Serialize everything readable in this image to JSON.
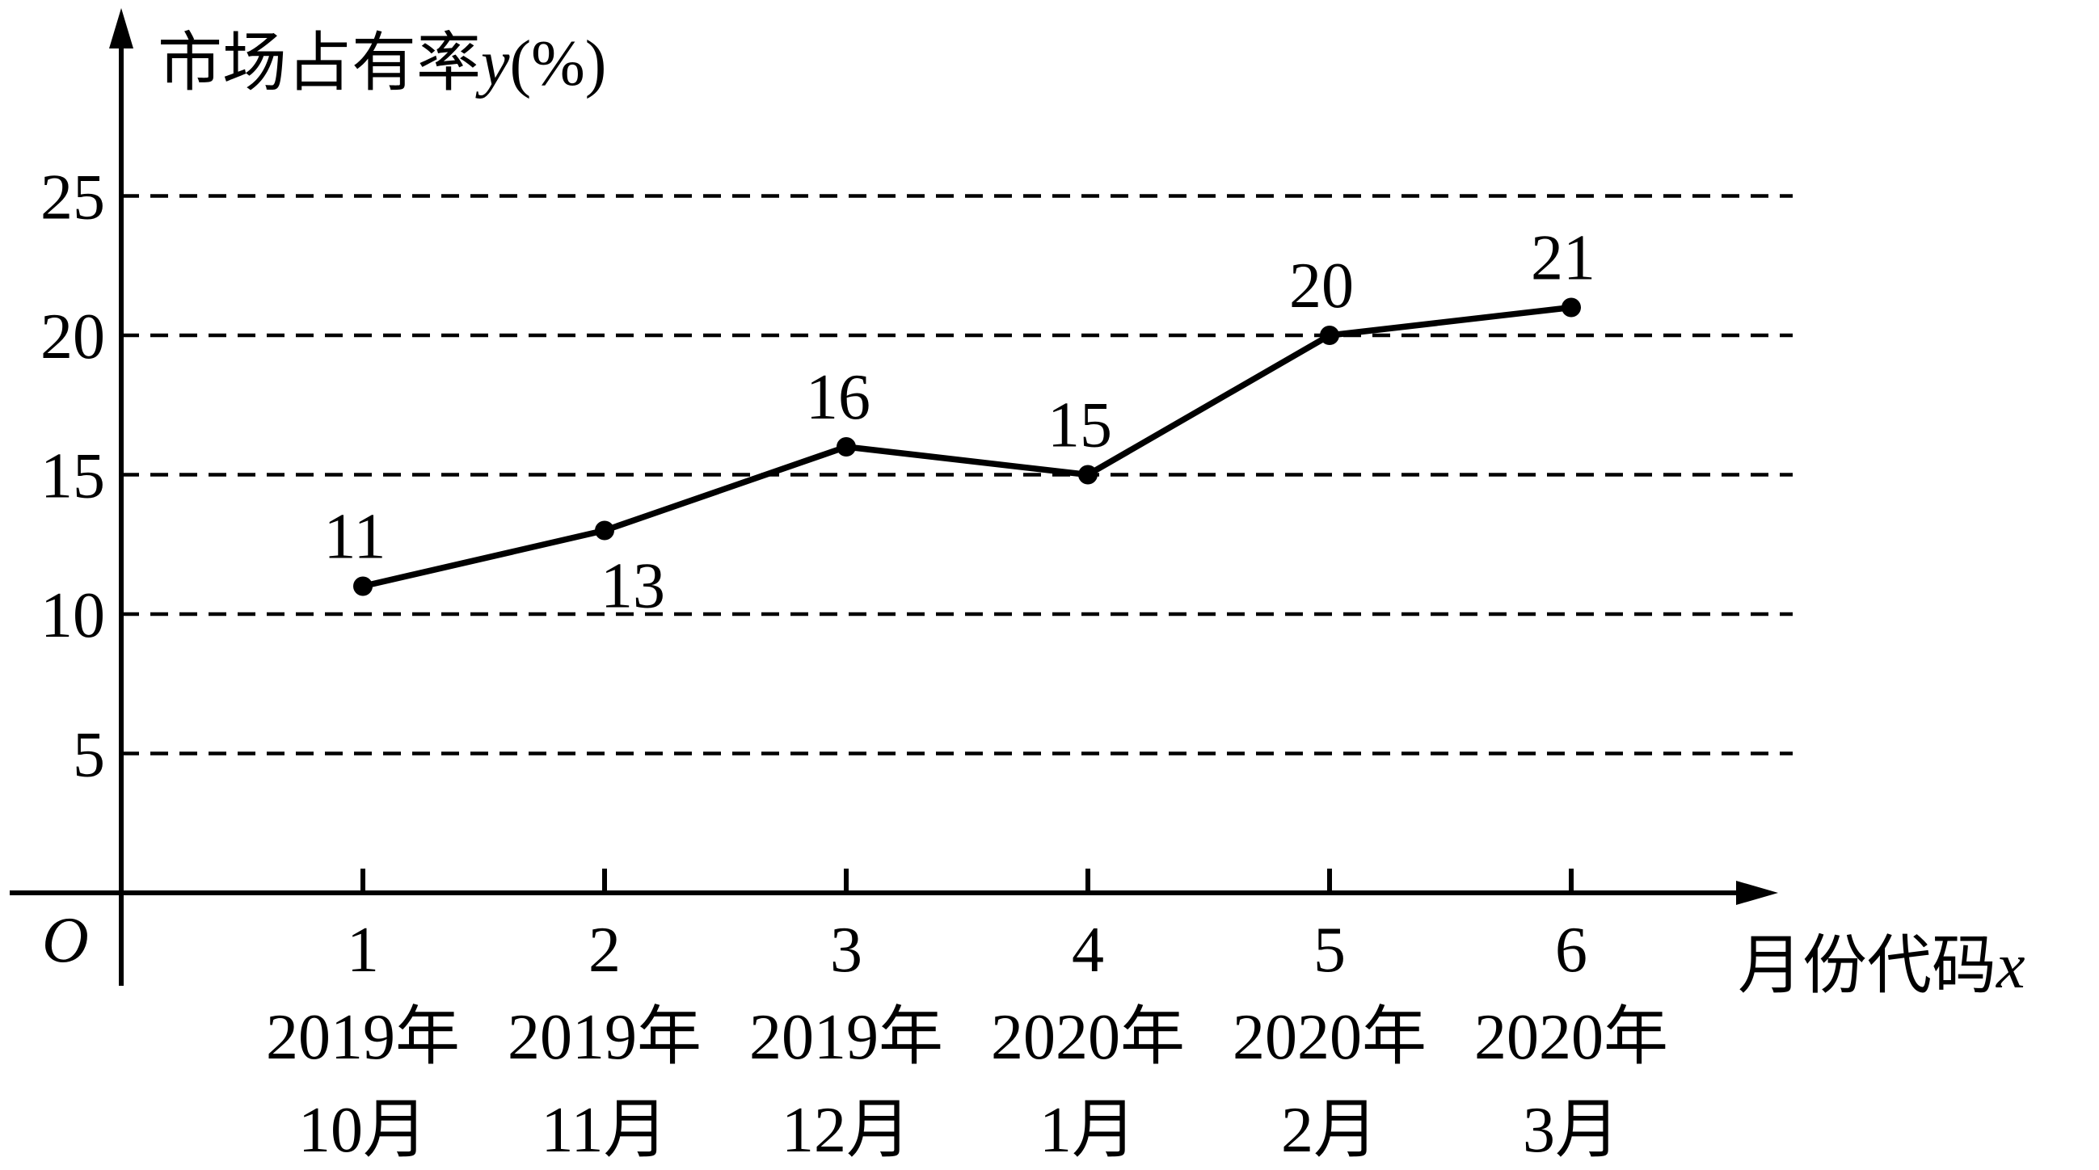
{
  "chart_data": {
    "type": "line",
    "ylabel": "市场占有率",
    "ylabel_var": "y",
    "ylabel_unit": "(%)",
    "xlabel": "月份代码",
    "xlabel_var": "x",
    "origin_label": "O",
    "x": [
      1,
      2,
      3,
      4,
      5,
      6
    ],
    "x_tick_labels": [
      "1",
      "2",
      "3",
      "4",
      "5",
      "6"
    ],
    "categories": [
      {
        "year": "2019年",
        "month": "10月"
      },
      {
        "year": "2019年",
        "month": "11月"
      },
      {
        "year": "2019年",
        "month": "12月"
      },
      {
        "year": "2020年",
        "month": "1月"
      },
      {
        "year": "2020年",
        "month": "2月"
      },
      {
        "year": "2020年",
        "month": "3月"
      }
    ],
    "series": [
      {
        "values": [
          11,
          13,
          16,
          15,
          20,
          21
        ],
        "color": "#000000"
      }
    ],
    "data_labels": [
      "11",
      "13",
      "16",
      "15",
      "20",
      "21"
    ],
    "y_ticks": [
      5,
      10,
      15,
      20,
      25
    ],
    "y_tick_labels": [
      "5",
      "10",
      "15",
      "20",
      "25"
    ],
    "ylim": [
      0,
      30
    ],
    "xlim": [
      0,
      7
    ],
    "grid": "horizontal-dashed",
    "legend": "none"
  }
}
